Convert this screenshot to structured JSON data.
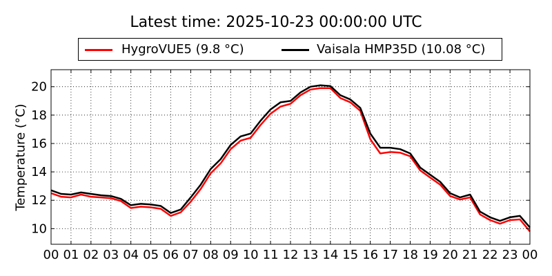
{
  "chart_data": {
    "type": "line",
    "title": "Latest time: 2025-10-23 00:00:00 UTC",
    "ylabel": "Temperature (°C)",
    "xlabel": "",
    "x_ticks": [
      "00",
      "01",
      "02",
      "03",
      "04",
      "05",
      "06",
      "07",
      "08",
      "09",
      "10",
      "11",
      "12",
      "13",
      "14",
      "15",
      "16",
      "17",
      "18",
      "19",
      "20",
      "21",
      "22",
      "23",
      "00"
    ],
    "y_ticks": [
      "10",
      "12",
      "14",
      "16",
      "18",
      "20"
    ],
    "xlim": [
      0,
      24
    ],
    "ylim": [
      8.9,
      21.2
    ],
    "grid": true,
    "legend_position": "top",
    "x": [
      0,
      0.5,
      1,
      1.5,
      2,
      2.5,
      3,
      3.5,
      4,
      4.5,
      5,
      5.5,
      6,
      6.5,
      7,
      7.5,
      8,
      8.5,
      9,
      9.5,
      10,
      10.5,
      11,
      11.5,
      12,
      12.5,
      13,
      13.5,
      14,
      14.5,
      15,
      15.5,
      16,
      16.5,
      17,
      17.5,
      18,
      18.5,
      19,
      19.5,
      20,
      20.5,
      21,
      21.5,
      22,
      22.5,
      23,
      23.5,
      24
    ],
    "series": [
      {
        "name": "HygroVUE5 (9.8 °C)",
        "color": "#ff0000",
        "values": [
          12.5,
          12.25,
          12.2,
          12.4,
          12.25,
          12.2,
          12.15,
          11.95,
          11.45,
          11.55,
          11.5,
          11.4,
          10.9,
          11.15,
          11.9,
          12.8,
          13.9,
          14.6,
          15.6,
          16.2,
          16.4,
          17.3,
          18.1,
          18.6,
          18.8,
          19.4,
          19.8,
          19.9,
          19.9,
          19.2,
          18.9,
          18.3,
          16.3,
          15.3,
          15.4,
          15.35,
          15.1,
          14.1,
          13.6,
          13.1,
          12.3,
          12.05,
          12.2,
          11.0,
          10.6,
          10.35,
          10.6,
          10.65,
          9.8
        ]
      },
      {
        "name": "Vaisala HMP35D (10.08 °C)",
        "color": "#000000",
        "values": [
          12.7,
          12.45,
          12.4,
          12.55,
          12.45,
          12.35,
          12.3,
          12.1,
          11.65,
          11.75,
          11.7,
          11.6,
          11.1,
          11.35,
          12.2,
          13.1,
          14.2,
          14.9,
          15.9,
          16.5,
          16.7,
          17.6,
          18.4,
          18.9,
          19.0,
          19.6,
          20.0,
          20.1,
          20.05,
          19.4,
          19.1,
          18.5,
          16.7,
          15.7,
          15.7,
          15.6,
          15.3,
          14.3,
          13.8,
          13.3,
          12.5,
          12.2,
          12.4,
          11.2,
          10.8,
          10.55,
          10.8,
          10.9,
          10.08
        ]
      }
    ]
  },
  "legend": {
    "hygrovue_label": "HygroVUE5 (9.8 °C)",
    "vaisala_label": "Vaisala HMP35D (10.08 °C)"
  }
}
